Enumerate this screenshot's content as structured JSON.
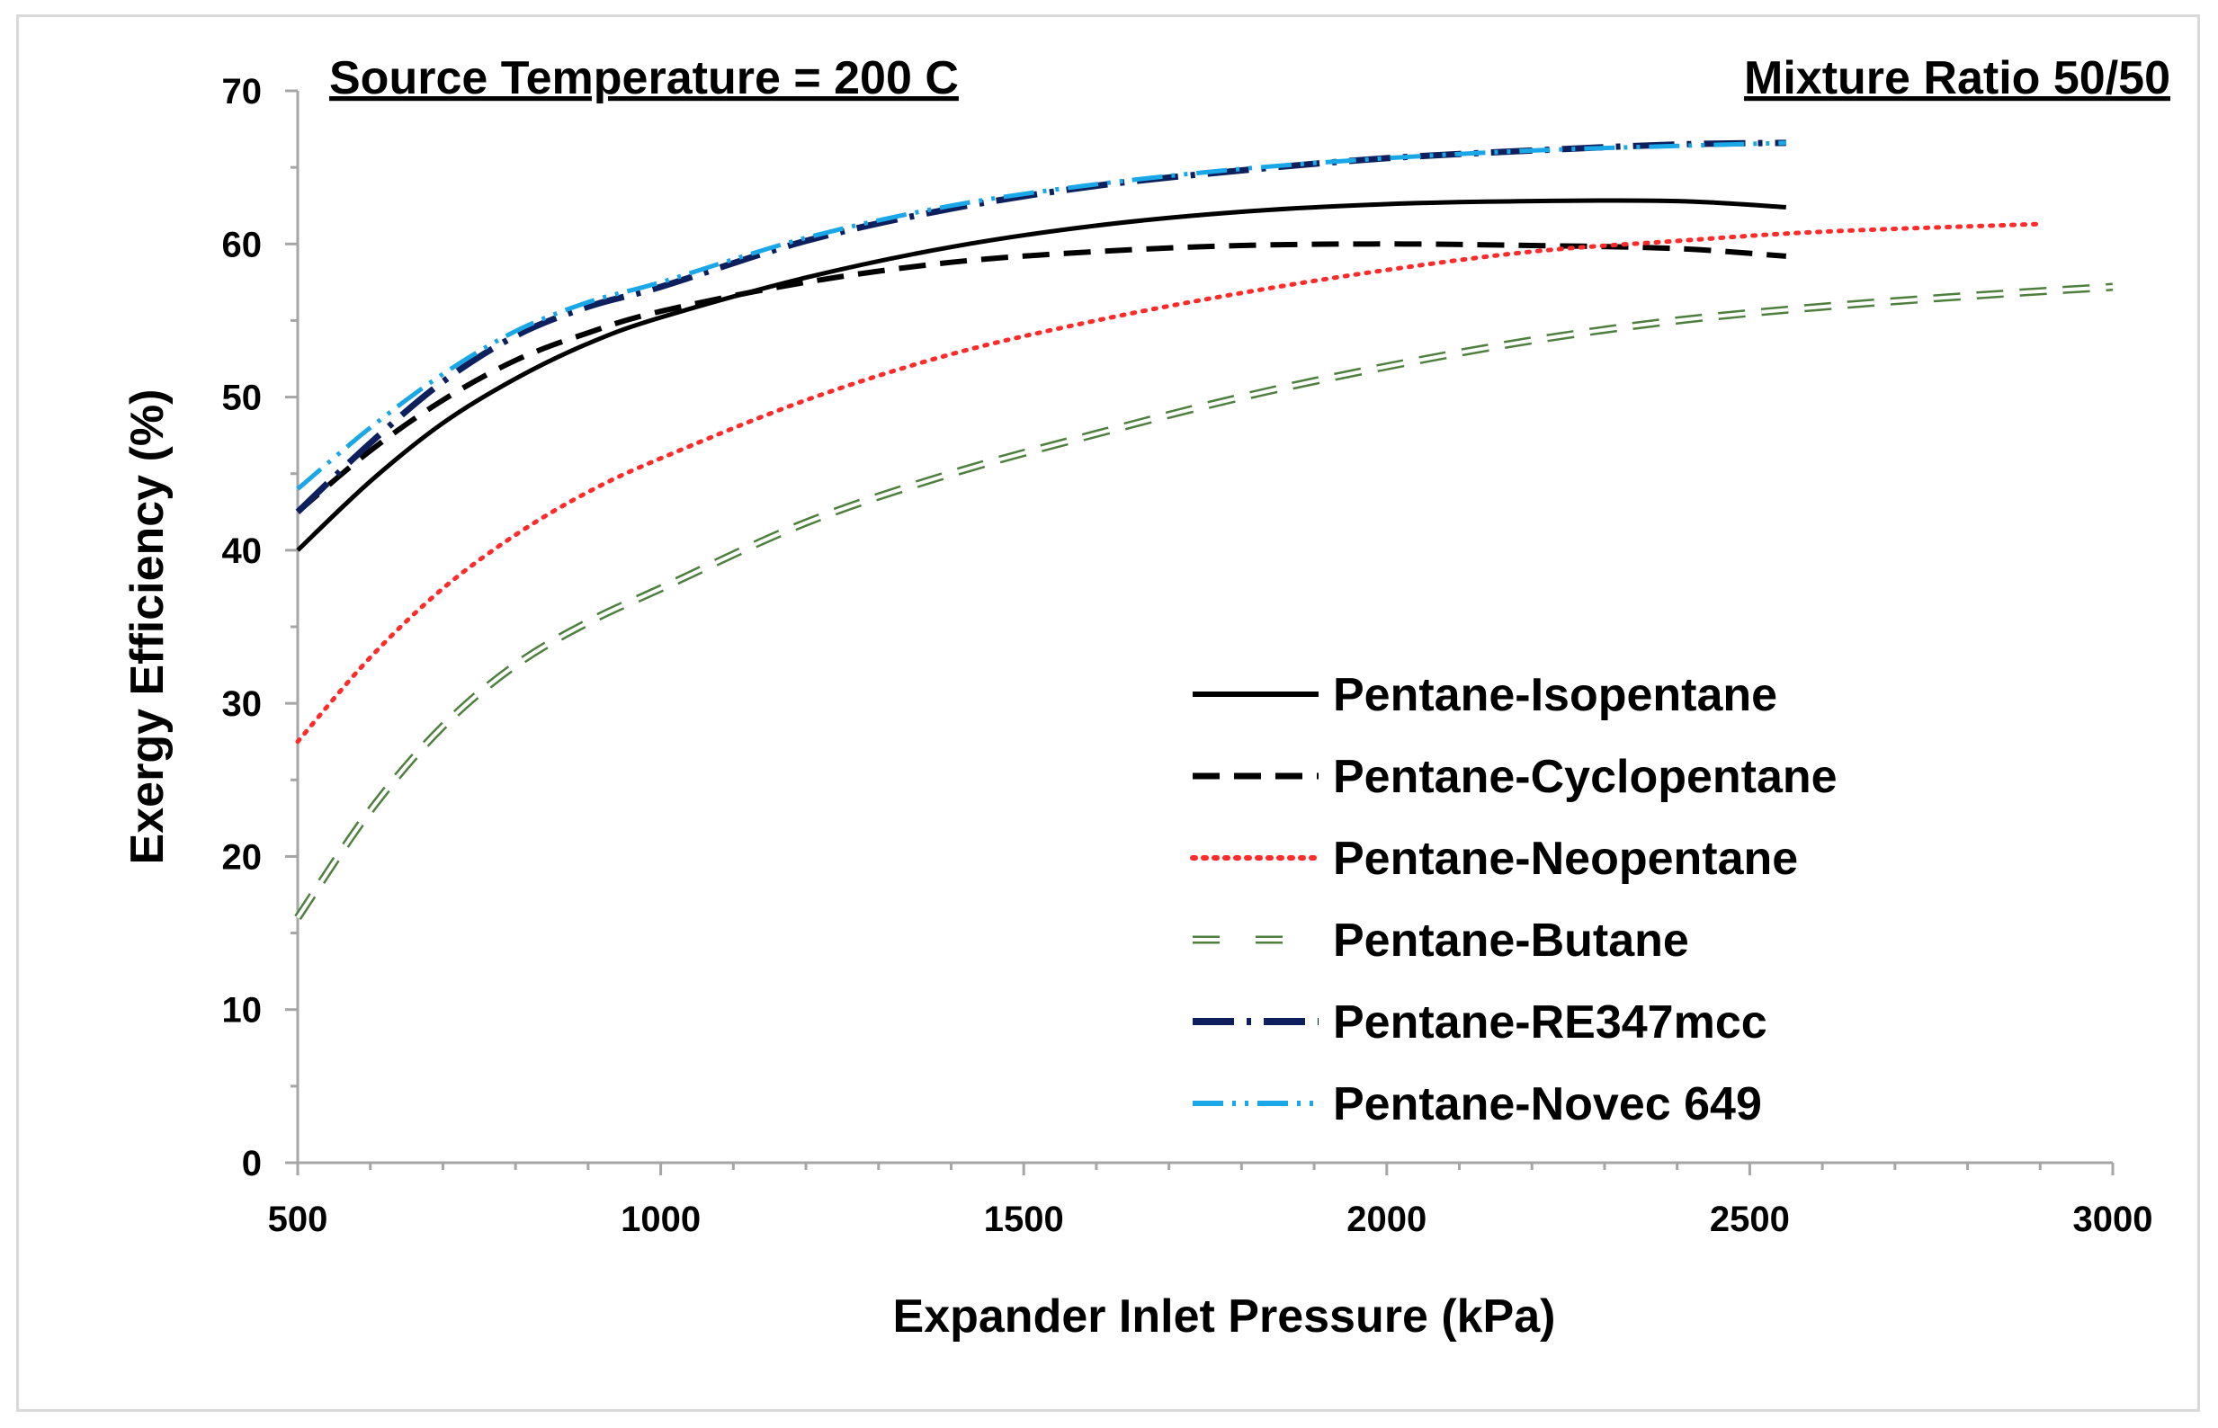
{
  "chart_data": {
    "type": "line",
    "annotations": {
      "left": "Source Temperature = 200 C",
      "right": "Mixture Ratio 50/50"
    },
    "xlabel": "Expander Inlet Pressure (kPa)",
    "ylabel": "Exergy Efficiency (%)",
    "xlim": [
      500,
      3000
    ],
    "ylim": [
      0,
      70
    ],
    "xticks": [
      500,
      1000,
      1500,
      2000,
      2500,
      3000
    ],
    "yticks": [
      0,
      10,
      20,
      30,
      40,
      50,
      60,
      70
    ],
    "legend_position": "bottom-right",
    "series": [
      {
        "name": "Pentane-Isopentane",
        "color": "#000000",
        "style": "solid",
        "x": [
          500,
          600,
          700,
          800,
          900,
          1000,
          1200,
          1400,
          1600,
          1800,
          2000,
          2200,
          2400,
          2550
        ],
        "y": [
          40.0,
          44.5,
          48.3,
          51.2,
          53.5,
          55.2,
          57.8,
          59.8,
          61.2,
          62.1,
          62.6,
          62.8,
          62.8,
          62.4
        ]
      },
      {
        "name": "Pentane-Cyclopentane",
        "color": "#000000",
        "style": "dashed",
        "x": [
          500,
          600,
          700,
          800,
          900,
          1000,
          1200,
          1400,
          1600,
          1800,
          2000,
          2200,
          2400,
          2550
        ],
        "y": [
          42.5,
          46.5,
          49.8,
          52.4,
          54.2,
          55.6,
          57.5,
          58.8,
          59.5,
          59.9,
          60.0,
          59.9,
          59.7,
          59.2
        ]
      },
      {
        "name": "Pentane-Neopentane",
        "color": "#ff2a2a",
        "style": "dotted",
        "x": [
          500,
          600,
          700,
          800,
          900,
          1000,
          1200,
          1400,
          1600,
          1800,
          2000,
          2200,
          2400,
          2600,
          2900
        ],
        "y": [
          27.5,
          33.0,
          37.5,
          41.0,
          43.8,
          46.0,
          49.8,
          52.8,
          55.0,
          56.8,
          58.3,
          59.5,
          60.2,
          60.8,
          61.3
        ]
      },
      {
        "name": "Pentane-Butane",
        "color": "#4e7f3f",
        "style": "double-dash",
        "x": [
          500,
          600,
          700,
          800,
          900,
          1000,
          1200,
          1400,
          1600,
          1800,
          2000,
          2200,
          2400,
          2600,
          2800,
          3000
        ],
        "y": [
          16.0,
          23.0,
          28.5,
          32.5,
          35.3,
          37.5,
          41.8,
          45.0,
          47.6,
          50.0,
          52.0,
          53.7,
          55.0,
          55.9,
          56.6,
          57.2
        ]
      },
      {
        "name": "Pentane-RE347mcc",
        "color": "#0d1f5c",
        "style": "long-dash-dot",
        "x": [
          500,
          600,
          700,
          800,
          900,
          1000,
          1200,
          1400,
          1600,
          1800,
          2000,
          2200,
          2400,
          2550
        ],
        "y": [
          42.5,
          47.0,
          51.0,
          54.0,
          55.9,
          57.2,
          60.2,
          62.3,
          63.8,
          64.8,
          65.6,
          66.1,
          66.5,
          66.6
        ]
      },
      {
        "name": "Pentane-Novec 649",
        "color": "#1aa7e8",
        "style": "dash-dot-dot",
        "x": [
          500,
          600,
          700,
          800,
          900,
          1000,
          1200,
          1400,
          1600,
          1800,
          2000,
          2200,
          2400,
          2550
        ],
        "y": [
          44.0,
          48.0,
          51.5,
          54.3,
          56.2,
          57.5,
          60.4,
          62.5,
          63.9,
          64.9,
          65.6,
          66.1,
          66.4,
          66.6
        ]
      }
    ]
  }
}
